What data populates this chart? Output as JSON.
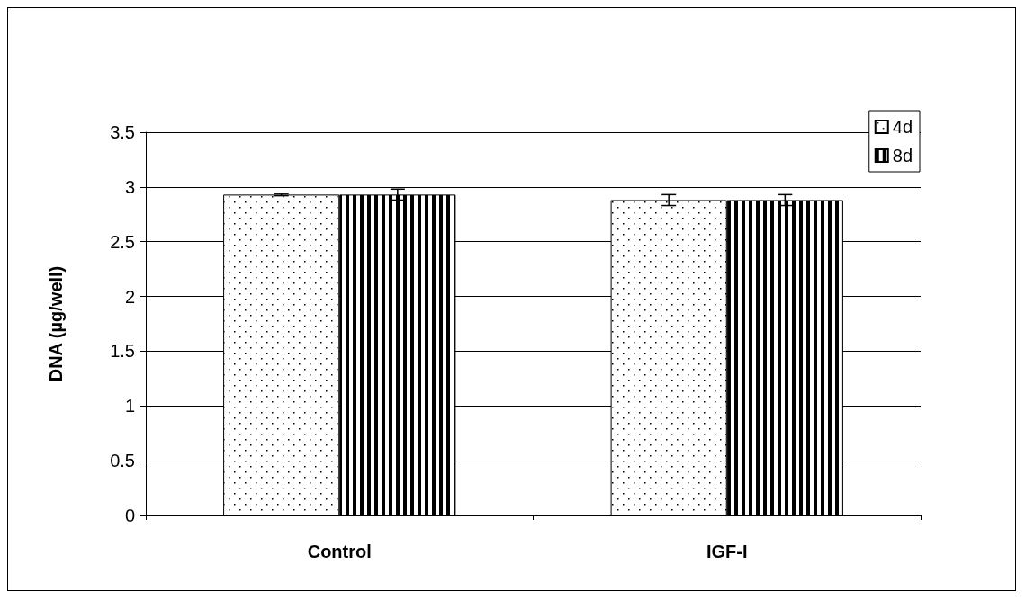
{
  "chart_data": {
    "type": "bar",
    "ylabel": "DNA (µg/well)",
    "categories": [
      "Control",
      "IGF-I"
    ],
    "series": [
      {
        "name": "4d",
        "color": "#000000",
        "values": [
          2.93,
          2.88
        ],
        "errors": [
          0.01,
          0.05
        ]
      },
      {
        "name": "8d",
        "color": "#000000",
        "values": [
          2.93,
          2.88
        ],
        "errors": [
          0.05,
          0.05
        ]
      }
    ],
    "ylim": [
      0,
      3.5
    ],
    "yticks": [
      0,
      0.5,
      1,
      1.5,
      2,
      2.5,
      3,
      3.5
    ],
    "grid": "y",
    "legend": "top right"
  }
}
